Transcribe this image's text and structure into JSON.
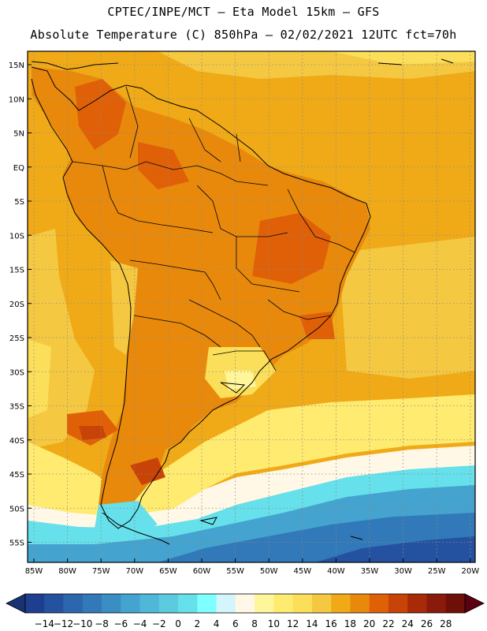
{
  "header": {
    "line1": "CPTEC/INPE/MCT –   Eta Model 15km – GFS",
    "line2": "Absolute Temperature (C) 850hPa – 02/02/2021 12UTC fct=70h"
  },
  "axes": {
    "lat_labels": [
      "15N",
      "10N",
      "5N",
      "EQ",
      "5S",
      "10S",
      "15S",
      "20S",
      "25S",
      "30S",
      "35S",
      "40S",
      "45S",
      "50S",
      "55S"
    ],
    "lon_labels": [
      "85W",
      "80W",
      "75W",
      "70W",
      "65W",
      "60W",
      "55W",
      "50W",
      "45W",
      "40W",
      "35W",
      "30W",
      "25W",
      "20W"
    ]
  },
  "colorbar": {
    "labels": [
      "-14",
      "-12",
      "-10",
      "-8",
      "-6",
      "-4",
      "-2",
      "0",
      "2",
      "4",
      "6",
      "8",
      "10",
      "12",
      "14",
      "16",
      "18",
      "20",
      "22",
      "24",
      "26",
      "28"
    ],
    "colors": [
      "#1e3f8f",
      "#2552a0",
      "#2c67ae",
      "#3179b8",
      "#3a8ec4",
      "#44a3cf",
      "#4fb7d8",
      "#5ccbe0",
      "#66e0ea",
      "#7fffff",
      "#d4f5fb",
      "#fff8e6",
      "#fff59a",
      "#ffeb70",
      "#fbdf5a",
      "#f5c842",
      "#f0aa18",
      "#e8890c",
      "#e06008",
      "#c84308",
      "#a82a08",
      "#8a1a0a",
      "#6e1008"
    ],
    "left_arrow_color": "#183373",
    "right_arrow_color": "#5a0010"
  }
}
